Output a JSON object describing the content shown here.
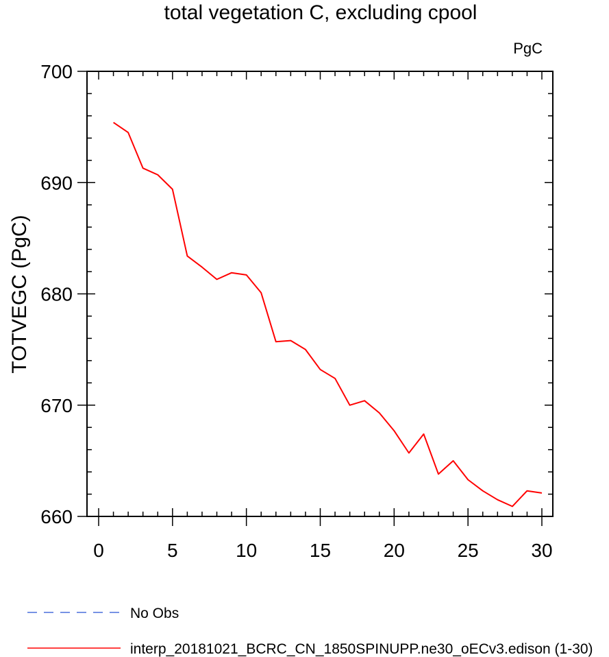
{
  "chart_data": {
    "type": "line",
    "title": "total vegetation C, excluding cpool",
    "units": "PgC",
    "ylabel": "TOTVEGC  (PgC)",
    "xlabel": "",
    "xlim": [
      0,
      30
    ],
    "ylim": [
      660,
      700
    ],
    "xticks": [
      0,
      5,
      10,
      15,
      20,
      25,
      30
    ],
    "yticks": [
      660,
      670,
      680,
      690,
      700
    ],
    "x_minor_step": 1,
    "y_minor_step": 2,
    "grid": false,
    "legend_position": "bottom-left",
    "series": [
      {
        "name": "interp_20181021_BCRC_CN_1850SPINUPP.ne30_oECv3.edison (1-30)",
        "color": "#ff0000",
        "style": "solid",
        "x": [
          1,
          2,
          3,
          4,
          5,
          6,
          7,
          8,
          9,
          10,
          11,
          12,
          13,
          14,
          15,
          16,
          17,
          18,
          19,
          20,
          21,
          22,
          23,
          24,
          25,
          26,
          27,
          28,
          29,
          30
        ],
        "y": [
          695.4,
          694.5,
          691.3,
          690.7,
          689.4,
          683.4,
          682.4,
          681.3,
          681.9,
          681.7,
          680.1,
          675.7,
          675.8,
          675.0,
          673.2,
          672.4,
          670.0,
          670.4,
          669.3,
          667.7,
          665.7,
          667.4,
          663.8,
          665.0,
          663.3,
          662.3,
          661.5,
          660.9,
          662.3,
          662.1
        ]
      }
    ],
    "legend": [
      {
        "label": "No Obs",
        "color": "#4a6fdc",
        "style": "dashed"
      },
      {
        "label": "interp_20181021_BCRC_CN_1850SPINUPP.ne30_oECv3.edison (1-30)",
        "color": "#ff0000",
        "style": "solid"
      }
    ]
  }
}
